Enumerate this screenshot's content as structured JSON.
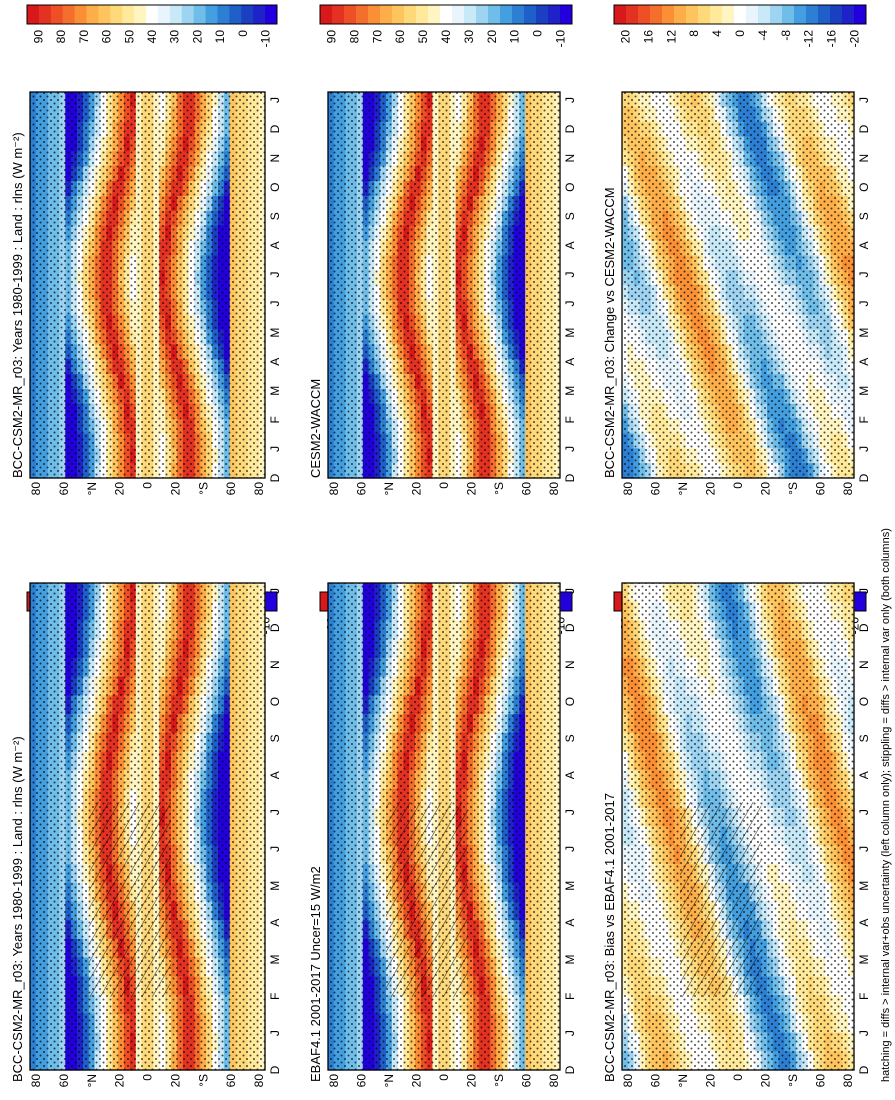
{
  "figure": {
    "footnote": "hatching = diffs > internal var+obs uncertainty (left column only); stippling = diffs > internal var only (both columns)"
  },
  "colorbars": {
    "absolute": {
      "colors": [
        "#d7191c",
        "#e33122",
        "#ee4f25",
        "#f56f2c",
        "#fa8f36",
        "#fdae48",
        "#fec55e",
        "#fed97a",
        "#ffe99a",
        "#fff5c2",
        "#ffffff",
        "#e9f5fc",
        "#c7e9f8",
        "#9ed4f2",
        "#6fbde9",
        "#439fdf",
        "#2c7fd3",
        "#1f5fc9",
        "#1a3fc0",
        "#1e22c8",
        "#2200dd"
      ],
      "labels": [
        "90",
        "80",
        "70",
        "60",
        "50",
        "40",
        "30",
        "20",
        "10",
        "0",
        "-10"
      ]
    },
    "difference": {
      "colors": [
        "#d7191c",
        "#e33122",
        "#ee4f25",
        "#f56f2c",
        "#fa8f36",
        "#fdae48",
        "#fec55e",
        "#fed97a",
        "#ffe99a",
        "#fff5c2",
        "#ffffff",
        "#e9f5fc",
        "#c7e9f8",
        "#9ed4f2",
        "#6fbde9",
        "#439fdf",
        "#2c7fd3",
        "#1f5fc9",
        "#1a3fc0",
        "#1e22c8",
        "#2200dd"
      ],
      "labels": [
        "20",
        "16",
        "12",
        "8",
        "4",
        "0",
        "-4",
        "-8",
        "-12",
        "-16",
        "-20"
      ]
    }
  },
  "chart_data": [
    {
      "type": "heatmap",
      "panel": "left-top",
      "title": "BCC-CSM2-MR_r03: Years 1980-1999 : Land : rlns (W m⁻²)",
      "variable": "rlns",
      "units": "W m-2",
      "x_ticks": [
        "D",
        "J",
        "F",
        "M",
        "A",
        "M",
        "J",
        "J",
        "A",
        "S",
        "O",
        "N",
        "D",
        "J"
      ],
      "y_ticks": [
        "80",
        "60",
        "°N",
        "20",
        "0",
        "20",
        "°S",
        "60",
        "80"
      ],
      "ylim": [
        -90,
        90
      ],
      "colorbar": "absolute",
      "hatching": true,
      "stippling": true
    },
    {
      "type": "heatmap",
      "panel": "right-top",
      "title": "BCC-CSM2-MR_r03: Years 1980-1999 : Land : rlns (W m⁻²)",
      "variable": "rlns",
      "units": "W m-2",
      "x_ticks": [
        "D",
        "J",
        "F",
        "M",
        "A",
        "M",
        "J",
        "J",
        "A",
        "S",
        "O",
        "N",
        "D",
        "J"
      ],
      "y_ticks": [
        "80",
        "60",
        "°N",
        "20",
        "0",
        "20",
        "°S",
        "60",
        "80"
      ],
      "ylim": [
        -90,
        90
      ],
      "colorbar": "absolute",
      "hatching": false,
      "stippling": true
    },
    {
      "type": "heatmap",
      "panel": "left-middle",
      "title": "EBAF4.1 2001-2017 Uncer=15 W/m2",
      "x_ticks": [
        "D",
        "J",
        "F",
        "M",
        "A",
        "M",
        "J",
        "J",
        "A",
        "S",
        "O",
        "N",
        "D",
        "J"
      ],
      "y_ticks": [
        "80",
        "60",
        "°N",
        "20",
        "0",
        "20",
        "°S",
        "60",
        "80"
      ],
      "ylim": [
        -90,
        90
      ],
      "colorbar": "absolute",
      "hatching": true,
      "stippling": true
    },
    {
      "type": "heatmap",
      "panel": "right-middle",
      "title": "CESM2-WACCM",
      "x_ticks": [
        "D",
        "J",
        "F",
        "M",
        "A",
        "M",
        "J",
        "J",
        "A",
        "S",
        "O",
        "N",
        "D",
        "J"
      ],
      "y_ticks": [
        "80",
        "60",
        "°N",
        "20",
        "0",
        "20",
        "°S",
        "60",
        "80"
      ],
      "ylim": [
        -90,
        90
      ],
      "colorbar": "absolute",
      "hatching": false,
      "stippling": true
    },
    {
      "type": "heatmap",
      "panel": "left-bottom",
      "title": "BCC-CSM2-MR_r03: Bias vs EBAF4.1 2001-2017",
      "x_ticks": [
        "D",
        "J",
        "F",
        "M",
        "A",
        "M",
        "J",
        "J",
        "A",
        "S",
        "O",
        "N",
        "D",
        "J"
      ],
      "y_ticks": [
        "80",
        "60",
        "°N",
        "20",
        "0",
        "20",
        "°S",
        "60",
        "80"
      ],
      "ylim": [
        -90,
        90
      ],
      "colorbar": "difference",
      "hatching": true,
      "stippling": true
    },
    {
      "type": "heatmap",
      "panel": "right-bottom",
      "title": "BCC-CSM2-MR_r03: Change vs CESM2-WACCM",
      "x_ticks": [
        "D",
        "J",
        "F",
        "M",
        "A",
        "M",
        "J",
        "J",
        "A",
        "S",
        "O",
        "N",
        "D",
        "J"
      ],
      "y_ticks": [
        "80",
        "60",
        "°N",
        "20",
        "0",
        "20",
        "°S",
        "60",
        "80"
      ],
      "ylim": [
        -90,
        90
      ],
      "colorbar": "difference",
      "hatching": false,
      "stippling": true
    }
  ]
}
